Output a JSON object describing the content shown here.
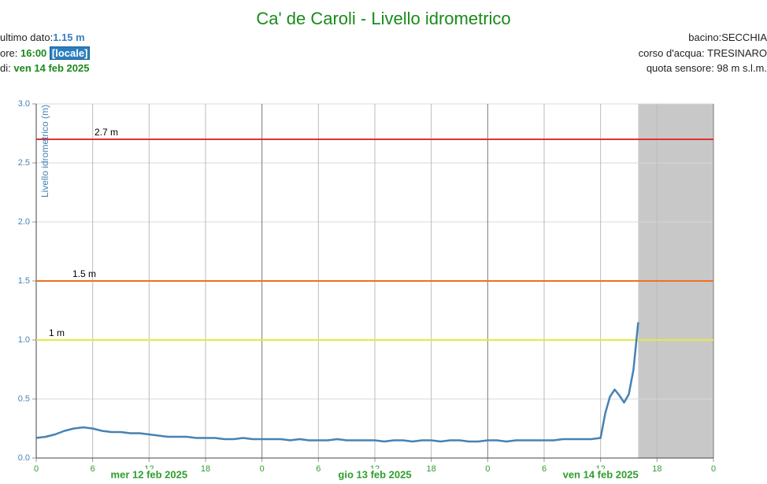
{
  "header": {
    "title": "Ca' de Caroli - Livello idrometrico",
    "last_label": "ultimo dato:",
    "last_value": "1.15 m",
    "time_label": "ore:",
    "time_value": "16:00",
    "time_badge": "[locale]",
    "date_label": "di:",
    "date_value": "ven 14 feb 2025",
    "basin": "bacino:SECCHIA",
    "river": "corso d'acqua: TRESINARO",
    "altitude": "quota sensore: 98 m s.l.m."
  },
  "chart_data": {
    "type": "line",
    "y_label": "Livello idrometrico (m)",
    "xlim": [
      0,
      72
    ],
    "xticks": [
      0,
      6,
      12,
      18,
      {
        "value": 24,
        "label": "0"
      },
      {
        "value": 30,
        "label": "6"
      },
      {
        "value": 36,
        "label": "12"
      },
      {
        "value": 42,
        "label": "18"
      },
      {
        "value": 48,
        "label": "0"
      },
      {
        "value": 54,
        "label": "6"
      },
      {
        "value": 60,
        "label": "12"
      },
      {
        "value": 66,
        "label": "18"
      },
      {
        "value": 72,
        "label": "0"
      }
    ],
    "day_labels": [
      {
        "x": 12,
        "label": "mer 12 feb 2025"
      },
      {
        "x": 36,
        "label": "gio 13 feb 2025"
      },
      {
        "x": 60,
        "label": "ven 14 feb 2025"
      }
    ],
    "ylim": [
      0,
      3
    ],
    "yticks": [
      {
        "value": 0,
        "label": "0.0"
      },
      {
        "value": 0.5,
        "label": "0.5"
      },
      {
        "value": 1,
        "label": "1.0"
      },
      {
        "value": 1.5,
        "label": "1.5"
      },
      {
        "value": 2,
        "label": "2.0"
      },
      {
        "value": 2.5,
        "label": "2.5"
      },
      {
        "value": 3,
        "label": "3.0"
      }
    ],
    "grid": true,
    "shaded_range": [
      64,
      72
    ],
    "thresholds": [
      {
        "value": 2.7,
        "label": "2.7 m",
        "color": "#e03030"
      },
      {
        "value": 1.5,
        "label": "1.5 m",
        "color": "#f07020"
      },
      {
        "value": 1,
        "label": "1 m",
        "color": "#e8e840"
      }
    ],
    "series": [
      {
        "color": "#4682b4",
        "x": [
          0,
          1,
          2,
          3,
          4,
          5,
          6,
          7,
          8,
          9,
          10,
          11,
          12,
          13,
          14,
          15,
          16,
          17,
          18,
          19,
          20,
          21,
          22,
          23,
          24,
          25,
          26,
          27,
          28,
          29,
          30,
          31,
          32,
          33,
          34,
          35,
          36,
          37,
          38,
          39,
          40,
          41,
          42,
          43,
          44,
          45,
          46,
          47,
          48,
          49,
          50,
          51,
          52,
          53,
          54,
          55,
          56,
          57,
          58,
          59,
          60,
          60.5,
          61,
          61.5,
          62,
          62.5,
          63,
          63.5,
          64
        ],
        "values": [
          0.17,
          0.18,
          0.2,
          0.23,
          0.25,
          0.26,
          0.25,
          0.23,
          0.22,
          0.22,
          0.21,
          0.21,
          0.2,
          0.19,
          0.18,
          0.18,
          0.18,
          0.17,
          0.17,
          0.17,
          0.16,
          0.16,
          0.17,
          0.16,
          0.16,
          0.16,
          0.16,
          0.15,
          0.16,
          0.15,
          0.15,
          0.15,
          0.16,
          0.15,
          0.15,
          0.15,
          0.15,
          0.14,
          0.15,
          0.15,
          0.14,
          0.15,
          0.15,
          0.14,
          0.15,
          0.15,
          0.14,
          0.14,
          0.15,
          0.15,
          0.14,
          0.15,
          0.15,
          0.15,
          0.15,
          0.15,
          0.16,
          0.16,
          0.16,
          0.16,
          0.17,
          0.38,
          0.52,
          0.58,
          0.53,
          0.47,
          0.54,
          0.75,
          1.15
        ]
      }
    ]
  }
}
